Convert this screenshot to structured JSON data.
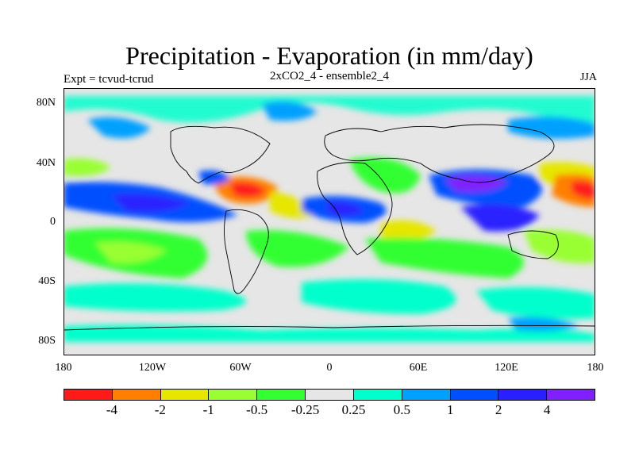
{
  "title": "Precipitation - Evaporation (in mm/day)",
  "subtitle_left": "Expt = tcvud-tcrud",
  "subtitle_center": "2xCO2_4 - ensemble2_4",
  "subtitle_right": "JJA",
  "lat_labels": [
    "80N",
    "40N",
    "0",
    "40S",
    "80S"
  ],
  "lon_labels": [
    "180",
    "120W",
    "60W",
    "0",
    "60E",
    "120E",
    "180"
  ],
  "colorbar": {
    "colors": [
      "#ff1a1a",
      "#ff8000",
      "#e6e600",
      "#99ff33",
      "#33ff33",
      "#e6e6e6",
      "#00ffcc",
      "#00a0ff",
      "#0050ff",
      "#2a20ff",
      "#8020ff"
    ],
    "labels": [
      "-4",
      "-2",
      "-1",
      "-0.5",
      "-0.25",
      "0.25",
      "0.5",
      "1",
      "2",
      "4"
    ]
  },
  "palette": {
    "ocean_background": "#e6e6e6",
    "coastline": "#000000"
  }
}
